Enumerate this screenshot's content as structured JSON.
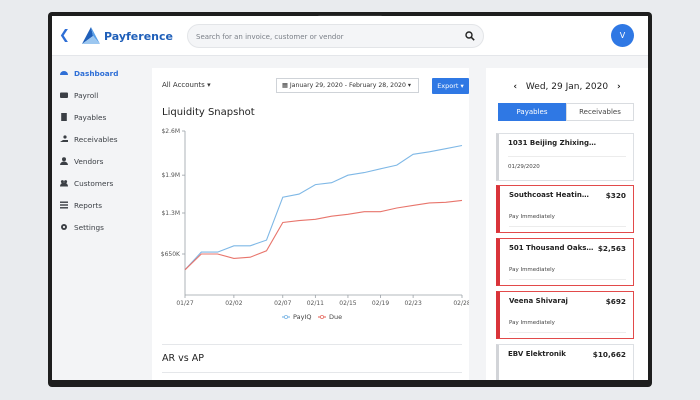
{
  "header": {
    "back_icon": "chevron-left-icon",
    "brand": "Payference",
    "search_placeholder": "Search for an invoice, customer or vendor",
    "avatar_initial": "V"
  },
  "sidebar": {
    "items": [
      {
        "label": "Dashboard",
        "icon": "dashboard-icon",
        "active": true
      },
      {
        "label": "Payroll",
        "icon": "wallet-icon"
      },
      {
        "label": "Payables",
        "icon": "document-icon"
      },
      {
        "label": "Receivables",
        "icon": "hand-money-icon"
      },
      {
        "label": "Vendors",
        "icon": "user-icon"
      },
      {
        "label": "Customers",
        "icon": "users-icon"
      },
      {
        "label": "Reports",
        "icon": "list-icon"
      },
      {
        "label": "Settings",
        "icon": "gear-icon"
      }
    ]
  },
  "main": {
    "accounts_label": "All Accounts",
    "date_range": "January 29, 2020 - February 28, 2020",
    "export_label": "Export",
    "snapshot_title": "Liquidity Snapshot",
    "arap_title": "AR vs AP"
  },
  "chart_data": {
    "type": "line",
    "x": [
      "01/27",
      "01/29",
      "01/31",
      "02/02",
      "02/04",
      "02/06",
      "02/07",
      "02/09",
      "02/11",
      "02/13",
      "02/15",
      "02/17",
      "02/19",
      "02/21",
      "02/23",
      "02/25",
      "02/27",
      "02/28"
    ],
    "x_ticks": [
      "01/27",
      "02/02",
      "02/07",
      "02/11",
      "02/15",
      "02/19",
      "02/23",
      "02/28"
    ],
    "y_ticks": [
      "$650K",
      "$1.3M",
      "$1.9M",
      "$2.6M"
    ],
    "y_tick_values": [
      650000,
      1300000,
      1900000,
      2600000
    ],
    "ylim": [
      0,
      2600000
    ],
    "grid": false,
    "legend_position": "bottom",
    "series": [
      {
        "name": "PayIQ",
        "color": "#7fb8e6",
        "values": [
          400000,
          680000,
          680000,
          780000,
          780000,
          870000,
          1550000,
          1600000,
          1750000,
          1780000,
          1900000,
          1940000,
          2000000,
          2060000,
          2230000,
          2270000,
          2320000,
          2370000
        ]
      },
      {
        "name": "Due",
        "color": "#e8756c",
        "values": [
          400000,
          650000,
          650000,
          580000,
          600000,
          700000,
          1150000,
          1180000,
          1200000,
          1250000,
          1280000,
          1320000,
          1320000,
          1380000,
          1420000,
          1460000,
          1470000,
          1500000
        ]
      }
    ]
  },
  "right_panel": {
    "date": "Wed, 29 Jan, 2020",
    "tabs": [
      "Payables",
      "Receivables"
    ],
    "invoices": [
      {
        "name": "1031 Beijing Zhixing…",
        "amount": "",
        "sub": "01/29/2020",
        "alert": false
      },
      {
        "name": "Southcoast Heatin…",
        "amount": "$320",
        "sub": "Pay Immediately",
        "alert": true
      },
      {
        "name": "501 Thousand Oaks…",
        "amount": "$2,563",
        "sub": "Pay Immediately",
        "alert": true
      },
      {
        "name": "Veena Shivaraj",
        "amount": "$692",
        "sub": "Pay Immediately",
        "alert": true
      },
      {
        "name": "EBV Elektronik",
        "amount": "$10,662",
        "sub": "",
        "alert": false
      }
    ]
  },
  "colors": {
    "accent": "#2f78e4",
    "alert": "#d9343a",
    "payiq": "#7fb8e6",
    "due": "#e8756c"
  }
}
